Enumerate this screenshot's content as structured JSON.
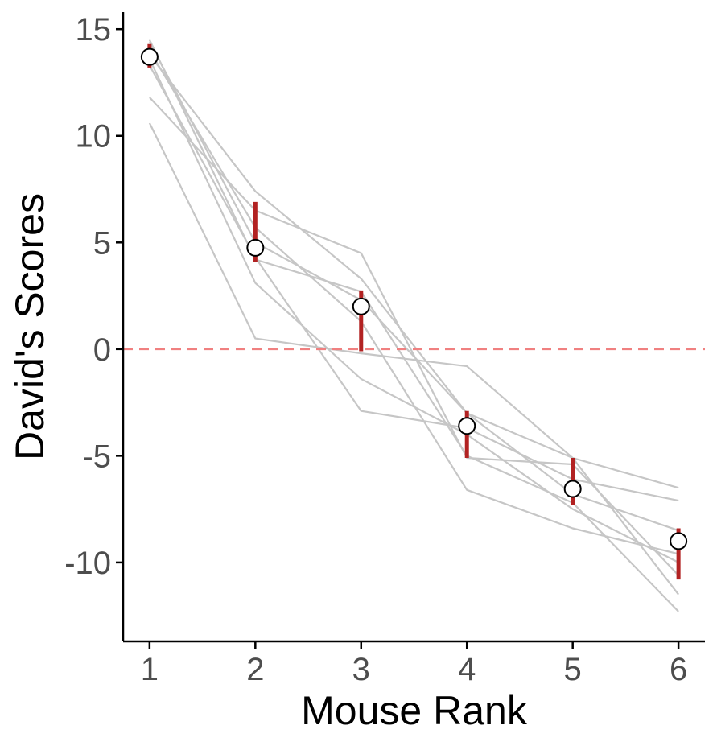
{
  "chart_data": {
    "type": "line",
    "xlabel": "Mouse Rank",
    "ylabel": "David's Scores",
    "x": [
      1,
      2,
      3,
      4,
      5,
      6
    ],
    "xlim": [
      0.75,
      6.25
    ],
    "ylim": [
      -13.7,
      15.8
    ],
    "xticks": [
      "1",
      "2",
      "3",
      "4",
      "5",
      "6"
    ],
    "yticks": [
      {
        "value": 15,
        "label": "15"
      },
      {
        "value": 10,
        "label": "10"
      },
      {
        "value": 5,
        "label": "5"
      },
      {
        "value": 0,
        "label": "0"
      },
      {
        "value": -5,
        "label": "-5"
      },
      {
        "value": -10,
        "label": "-10"
      }
    ],
    "grid": false,
    "reference_line": {
      "y": 0,
      "style": "dashed",
      "color": "#f08080"
    },
    "mean": [
      13.7,
      4.75,
      2.0,
      -3.6,
      -6.55,
      -9.0
    ],
    "error_bars": [
      {
        "x": 1,
        "low": 13.2,
        "high": 14.3
      },
      {
        "x": 2,
        "low": 4.1,
        "high": 6.9
      },
      {
        "x": 3,
        "low": -0.1,
        "high": 2.75
      },
      {
        "x": 4,
        "low": -5.1,
        "high": -2.9
      },
      {
        "x": 5,
        "low": -7.3,
        "high": -5.1
      },
      {
        "x": 6,
        "low": -10.8,
        "high": -8.4
      }
    ],
    "individual_groups": [
      [
        14.5,
        4.2,
        2.7,
        -5.0,
        -7.2,
        -12.3
      ],
      [
        14.4,
        5.0,
        2.3,
        -3.0,
        -5.1,
        -11.5
      ],
      [
        13.8,
        7.4,
        3.3,
        -3.0,
        -6.8,
        -8.5
      ],
      [
        11.8,
        6.5,
        4.5,
        -5.1,
        -5.4,
        -10.6
      ],
      [
        10.6,
        0.5,
        -0.2,
        -0.8,
        -5.1,
        -6.5
      ],
      [
        13.6,
        3.1,
        -1.4,
        -4.0,
        -7.5,
        -10.0
      ],
      [
        14.0,
        5.7,
        1.3,
        -6.6,
        -8.4,
        -9.6
      ],
      [
        13.3,
        4.3,
        -2.9,
        -3.7,
        -6.1,
        -7.1
      ]
    ],
    "colors": {
      "individual": "#c6c6c6",
      "error_bar": "#b22222",
      "point_fill": "#ffffff",
      "point_stroke": "#000000",
      "axis": "#000000",
      "reference": "#f08080"
    }
  }
}
